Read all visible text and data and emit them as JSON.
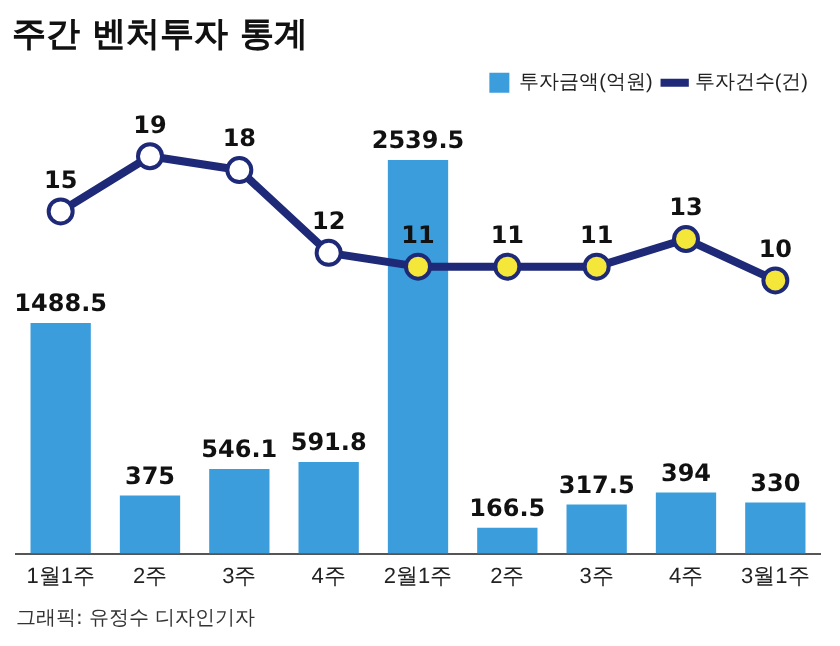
{
  "chart_data": {
    "type": "bar",
    "title": "주간 벤처투자 통계",
    "categories": [
      "1월1주",
      "2주",
      "3주",
      "4주",
      "2월1주",
      "2주",
      "3주",
      "4주",
      "3월1주"
    ],
    "series": [
      {
        "name": "투자금액(억원)",
        "color": "#3b9ddb",
        "values": [
          1488.5,
          375,
          546.1,
          591.8,
          2539.5,
          166.5,
          317.5,
          394,
          330
        ]
      },
      {
        "name": "투자건수(건)",
        "type": "line",
        "axis": "y2",
        "color": "#1e2a78",
        "colors": [
          "#ffffff",
          "#ffffff",
          "#ffffff",
          "#ffffff",
          "#f5e63a",
          "#f5e63a",
          "#f5e63a",
          "#f5e63a",
          "#f5e63a"
        ],
        "values": [
          15,
          19,
          18,
          12,
          11,
          11,
          11,
          13,
          10
        ]
      }
    ],
    "data_labels": true,
    "legend": "top right",
    "marker": "circle",
    "line_style": "solid",
    "tick_labels": "x",
    "grid": false,
    "annotations": [
      "그래픽: 유정수 디자인기자"
    ]
  }
}
